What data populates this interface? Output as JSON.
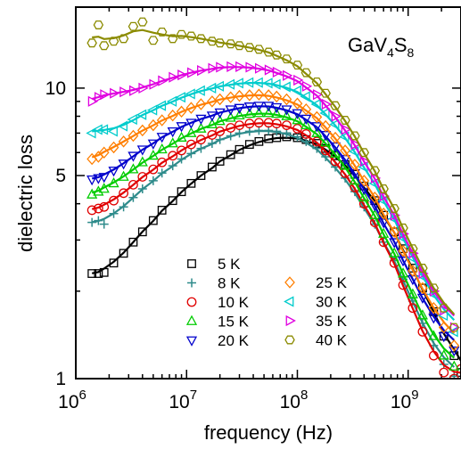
{
  "chart_data": {
    "type": "scatter",
    "title": "",
    "annotation": {
      "base": "GaV",
      "sub1": "4",
      "mid": "S",
      "sub2": "8"
    },
    "xlabel": "frequency (Hz)",
    "ylabel": "dielectric loss",
    "x_scale": "log",
    "y_scale": "log",
    "xlim": [
      1000000,
      3000000000
    ],
    "ylim": [
      1,
      19
    ],
    "x_ticks": [
      {
        "value": 1000000,
        "base": "10",
        "exp": "6"
      },
      {
        "value": 10000000,
        "base": "10",
        "exp": "7"
      },
      {
        "value": 100000000,
        "base": "10",
        "exp": "8"
      },
      {
        "value": 1000000000,
        "base": "10",
        "exp": "9"
      }
    ],
    "y_ticks": [
      {
        "value": 1,
        "label": "1"
      },
      {
        "value": 5,
        "label": "5"
      },
      {
        "value": 10,
        "label": "10"
      }
    ],
    "legend_position": "bottom-center",
    "series": [
      {
        "name": "5 K",
        "marker": "square",
        "color": "#000000",
        "x": [
          1400000.0,
          1600000.0,
          1800000.0,
          2200000.0,
          2700000.0,
          3300000.0,
          4000000.0,
          5000000.0,
          6000000.0,
          7500000.0,
          9000000.0,
          11000000.0,
          13500000.0,
          17000000.0,
          20000000.0,
          25000000.0,
          30000000.0,
          37000000.0,
          45000000.0,
          55000000.0,
          65000000.0,
          80000000.0,
          100000000.0,
          120000000.0,
          150000000.0,
          180000000.0,
          220000000.0,
          270000000.0,
          330000000.0,
          400000000.0,
          500000000.0,
          600000000.0,
          750000000.0,
          900000000.0,
          1100000000.0,
          1350000000.0,
          1700000000.0,
          2100000000.0,
          2600000000.0,
          3000000000.0
        ],
        "y": [
          2.3,
          2.3,
          2.32,
          2.5,
          2.7,
          2.95,
          3.2,
          3.5,
          3.8,
          4.1,
          4.4,
          4.7,
          5,
          5.35,
          5.6,
          5.9,
          6.15,
          6.4,
          6.55,
          6.7,
          6.75,
          6.8,
          6.75,
          6.65,
          6.45,
          6.2,
          5.85,
          5.45,
          5.05,
          4.6,
          4.1,
          3.65,
          3.2,
          2.8,
          2.4,
          2.05,
          1.7,
          1.4,
          1.2,
          1.05
        ]
      },
      {
        "name": "8 K",
        "marker": "plus",
        "color": "#2e8b8b",
        "x": [
          1400000.0,
          1600000.0,
          1800000.0,
          2200000.0,
          2700000.0,
          3300000.0,
          4000000.0,
          5000000.0,
          6000000.0,
          7500000.0,
          9000000.0,
          11000000.0,
          13500000.0,
          17000000.0,
          20000000.0,
          25000000.0,
          30000000.0,
          37000000.0,
          45000000.0,
          55000000.0,
          65000000.0,
          80000000.0,
          100000000.0,
          120000000.0,
          150000000.0,
          180000000.0,
          220000000.0,
          270000000.0,
          330000000.0,
          400000000.0,
          500000000.0,
          600000000.0,
          750000000.0,
          900000000.0,
          1100000000.0,
          1350000000.0,
          1700000000.0,
          2100000000.0,
          2600000000.0
        ],
        "y": [
          3.45,
          3.5,
          3.4,
          3.7,
          3.9,
          4.2,
          4.5,
          4.8,
          5.1,
          5.4,
          5.7,
          5.95,
          6.2,
          6.45,
          6.65,
          6.85,
          7.0,
          7.1,
          7.15,
          7.15,
          7.1,
          7.0,
          6.8,
          6.55,
          6.2,
          5.8,
          5.35,
          4.9,
          4.4,
          3.9,
          3.4,
          2.95,
          2.55,
          2.2,
          1.85,
          1.55,
          1.3,
          1.12,
          1.02
        ]
      },
      {
        "name": "10 K",
        "marker": "circle",
        "color": "#e00000",
        "x": [
          1400000.0,
          1600000.0,
          1800000.0,
          2200000.0,
          2700000.0,
          3300000.0,
          4000000.0,
          5000000.0,
          6000000.0,
          7500000.0,
          9000000.0,
          11000000.0,
          13500000.0,
          17000000.0,
          20000000.0,
          25000000.0,
          30000000.0,
          37000000.0,
          45000000.0,
          55000000.0,
          65000000.0,
          80000000.0,
          100000000.0,
          120000000.0,
          150000000.0,
          180000000.0,
          220000000.0,
          270000000.0,
          330000000.0,
          400000000.0,
          500000000.0,
          600000000.0,
          750000000.0,
          900000000.0,
          1100000000.0,
          1350000000.0,
          1700000000.0,
          2100000000.0,
          2600000000.0,
          3000000000.0
        ],
        "y": [
          3.8,
          3.85,
          3.9,
          4.1,
          4.35,
          4.65,
          4.95,
          5.25,
          5.55,
          5.85,
          6.1,
          6.4,
          6.65,
          6.9,
          7.1,
          7.3,
          7.45,
          7.55,
          7.6,
          7.6,
          7.55,
          7.45,
          7.25,
          6.95,
          6.55,
          6.1,
          5.6,
          5.1,
          4.55,
          4.0,
          3.45,
          2.95,
          2.5,
          2.1,
          1.75,
          1.45,
          1.2,
          1.05,
          1.0,
          1.08
        ]
      },
      {
        "name": "15 K",
        "marker": "triangle-up",
        "color": "#00cc00",
        "x": [
          1400000.0,
          1600000.0,
          1800000.0,
          2200000.0,
          2700000.0,
          3300000.0,
          4000000.0,
          5000000.0,
          6000000.0,
          7500000.0,
          9000000.0,
          11000000.0,
          13500000.0,
          17000000.0,
          20000000.0,
          25000000.0,
          30000000.0,
          37000000.0,
          45000000.0,
          55000000.0,
          65000000.0,
          80000000.0,
          100000000.0,
          120000000.0,
          150000000.0,
          180000000.0,
          220000000.0,
          270000000.0,
          330000000.0,
          400000000.0,
          500000000.0,
          600000000.0,
          750000000.0,
          900000000.0,
          1100000000.0,
          1350000000.0,
          1700000000.0,
          2100000000.0,
          2600000000.0
        ],
        "y": [
          4.3,
          4.4,
          4.5,
          4.7,
          4.95,
          5.25,
          5.55,
          5.85,
          6.15,
          6.45,
          6.75,
          7.0,
          7.25,
          7.5,
          7.7,
          7.9,
          8.05,
          8.15,
          8.2,
          8.2,
          8.15,
          8.0,
          7.75,
          7.45,
          7.0,
          6.5,
          5.95,
          5.4,
          4.8,
          4.2,
          3.65,
          3.15,
          2.7,
          2.3,
          1.95,
          1.65,
          1.4,
          1.2,
          1.1
        ]
      },
      {
        "name": "20 K",
        "marker": "triangle-down",
        "color": "#0000cc",
        "x": [
          1400000.0,
          1600000.0,
          1800000.0,
          2200000.0,
          2700000.0,
          3300000.0,
          4000000.0,
          5000000.0,
          6000000.0,
          7500000.0,
          9000000.0,
          11000000.0,
          13500000.0,
          17000000.0,
          20000000.0,
          25000000.0,
          30000000.0,
          37000000.0,
          45000000.0,
          55000000.0,
          65000000.0,
          80000000.0,
          100000000.0,
          120000000.0,
          150000000.0,
          180000000.0,
          220000000.0,
          270000000.0,
          330000000.0,
          400000000.0,
          500000000.0,
          600000000.0,
          750000000.0,
          900000000.0,
          1100000000.0,
          1350000000.0,
          1700000000.0,
          2100000000.0,
          2600000000.0
        ],
        "y": [
          4.85,
          4.9,
          4.95,
          5.2,
          5.5,
          5.85,
          6.15,
          6.45,
          6.8,
          7.1,
          7.4,
          7.6,
          7.85,
          8.05,
          8.25,
          8.45,
          8.55,
          8.65,
          8.7,
          8.7,
          8.6,
          8.45,
          8.2,
          7.85,
          7.4,
          6.9,
          6.3,
          5.7,
          5.1,
          4.5,
          3.95,
          3.45,
          2.95,
          2.55,
          2.2,
          1.9,
          1.62,
          1.4,
          1.25
        ]
      },
      {
        "name": "25 K",
        "marker": "diamond",
        "color": "#ff7f00",
        "x": [
          1400000.0,
          1600000.0,
          1800000.0,
          2200000.0,
          2700000.0,
          3300000.0,
          4000000.0,
          5000000.0,
          6000000.0,
          7500000.0,
          9000000.0,
          11000000.0,
          13500000.0,
          17000000.0,
          20000000.0,
          25000000.0,
          30000000.0,
          37000000.0,
          45000000.0,
          55000000.0,
          65000000.0,
          80000000.0,
          100000000.0,
          120000000.0,
          150000000.0,
          180000000.0,
          220000000.0,
          270000000.0,
          330000000.0,
          400000000.0,
          500000000.0,
          600000000.0,
          750000000.0,
          900000000.0,
          1100000000.0,
          1350000000.0,
          1700000000.0,
          2100000000.0,
          2600000000.0
        ],
        "y": [
          5.7,
          5.8,
          6.0,
          6.25,
          6.55,
          6.85,
          7.15,
          7.45,
          7.75,
          8.05,
          8.3,
          8.55,
          8.8,
          9.0,
          9.15,
          9.3,
          9.4,
          9.45,
          9.5,
          9.45,
          9.35,
          9.15,
          8.85,
          8.45,
          7.95,
          7.4,
          6.75,
          6.1,
          5.45,
          4.8,
          4.2,
          3.7,
          3.2,
          2.75,
          2.35,
          2.05,
          1.75,
          1.5,
          1.3
        ]
      },
      {
        "name": "30 K",
        "marker": "triangle-left",
        "color": "#00cccc",
        "x": [
          1400000.0,
          1600000.0,
          1800000.0,
          2200000.0,
          2700000.0,
          3300000.0,
          4000000.0,
          5000000.0,
          6000000.0,
          7500000.0,
          9000000.0,
          11000000.0,
          13500000.0,
          17000000.0,
          20000000.0,
          25000000.0,
          30000000.0,
          37000000.0,
          45000000.0,
          55000000.0,
          65000000.0,
          80000000.0,
          100000000.0,
          120000000.0,
          150000000.0,
          180000000.0,
          220000000.0,
          270000000.0,
          330000000.0,
          400000000.0,
          500000000.0,
          600000000.0,
          750000000.0,
          900000000.0,
          1100000000.0,
          1350000000.0,
          1700000000.0,
          2100000000.0,
          2600000000.0
        ],
        "y": [
          7.0,
          7.2,
          7.2,
          7.1,
          7.4,
          7.8,
          8.1,
          8.4,
          8.7,
          9.0,
          9.3,
          9.55,
          9.8,
          10.0,
          10.15,
          10.3,
          10.4,
          10.45,
          10.45,
          10.4,
          10.3,
          10.1,
          9.8,
          9.35,
          8.8,
          8.2,
          7.5,
          6.8,
          6.05,
          5.35,
          4.7,
          4.1,
          3.55,
          3.05,
          2.6,
          2.25,
          1.95,
          1.65,
          1.45
        ]
      },
      {
        "name": "35 K",
        "marker": "triangle-right",
        "color": "#e000e0",
        "x": [
          1400000.0,
          1600000.0,
          1800000.0,
          2200000.0,
          2700000.0,
          3300000.0,
          4000000.0,
          5000000.0,
          6000000.0,
          7500000.0,
          9000000.0,
          11000000.0,
          13500000.0,
          17000000.0,
          20000000.0,
          25000000.0,
          30000000.0,
          37000000.0,
          45000000.0,
          55000000.0,
          65000000.0,
          80000000.0,
          100000000.0,
          120000000.0,
          150000000.0,
          180000000.0,
          220000000.0,
          270000000.0,
          330000000.0,
          400000000.0,
          500000000.0,
          600000000.0,
          750000000.0,
          900000000.0,
          1100000000.0,
          1350000000.0,
          1700000000.0,
          2100000000.0,
          2600000000.0
        ],
        "y": [
          9.0,
          9.3,
          9.5,
          9.6,
          9.7,
          9.8,
          10.0,
          10.3,
          10.6,
          10.9,
          11.1,
          11.3,
          11.5,
          11.7,
          11.8,
          11.85,
          11.85,
          11.8,
          11.7,
          11.55,
          11.35,
          11.05,
          10.65,
          10.15,
          9.5,
          8.8,
          8.0,
          7.2,
          6.4,
          5.6,
          4.9,
          4.25,
          3.65,
          3.15,
          2.7,
          2.3,
          2.0,
          1.72,
          1.5
        ]
      },
      {
        "name": "40 K",
        "marker": "hexagon",
        "color": "#8b8b00",
        "x": [
          1400000.0,
          1600000.0,
          1800000.0,
          2200000.0,
          2700000.0,
          3300000.0,
          4000000.0,
          5000000.0,
          6000000.0,
          7500000.0,
          9000000.0,
          11000000.0,
          13500000.0,
          17000000.0,
          20000000.0,
          25000000.0,
          30000000.0,
          37000000.0,
          45000000.0,
          55000000.0,
          65000000.0,
          80000000.0,
          100000000.0,
          120000000.0,
          150000000.0,
          180000000.0,
          220000000.0,
          270000000.0,
          330000000.0,
          400000000.0,
          500000000.0,
          600000000.0,
          750000000.0,
          900000000.0,
          1100000000.0,
          1350000000.0,
          1700000000.0,
          2100000000.0,
          2600000000.0
        ],
        "y": [
          14.3,
          16.5,
          14.0,
          14.5,
          14.8,
          16.3,
          16.9,
          14.6,
          15.6,
          14.8,
          15.3,
          15.1,
          14.8,
          14.5,
          14.3,
          14.2,
          14.0,
          13.8,
          13.6,
          13.3,
          13.0,
          12.6,
          12.0,
          11.3,
          10.5,
          9.6,
          8.7,
          7.75,
          6.85,
          6.0,
          5.2,
          4.5,
          3.85,
          3.3,
          2.8,
          2.4,
          2.05,
          1.75,
          1.5
        ]
      }
    ]
  }
}
